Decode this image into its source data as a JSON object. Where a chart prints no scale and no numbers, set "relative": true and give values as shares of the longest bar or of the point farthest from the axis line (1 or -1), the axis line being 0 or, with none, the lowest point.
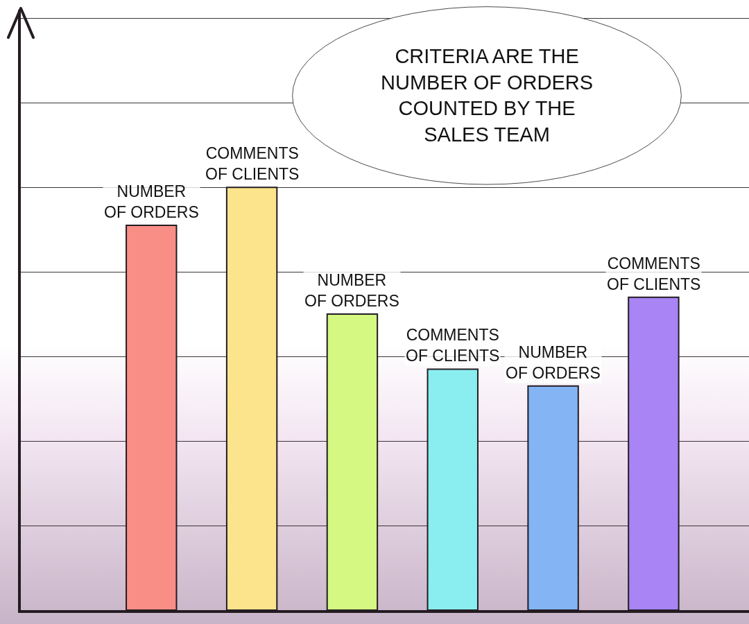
{
  "chart_data": {
    "type": "bar",
    "relative": true,
    "categories": [
      "NUMBER\nOF ORDERS",
      "COMMENTS\nOF CLIENTS",
      "NUMBER\nOF ORDERS",
      "COMMENTS\nOF CLIENTS",
      "NUMBER\nOF ORDERS",
      "COMMENTS\nOF CLIENTS"
    ],
    "values": [
      0.91,
      1,
      0.7,
      0.57,
      0.53,
      0.74
    ],
    "colors": [
      "#f98e86",
      "#fbe48c",
      "#d4f882",
      "#8aeef0",
      "#84b4f4",
      "#a884f4"
    ],
    "annotations": [
      "CRITERIA ARE THE\nNUMBER OF ORDERS\nCOUNTED BY THE\nSALES TEAM"
    ],
    "grid": "y"
  }
}
